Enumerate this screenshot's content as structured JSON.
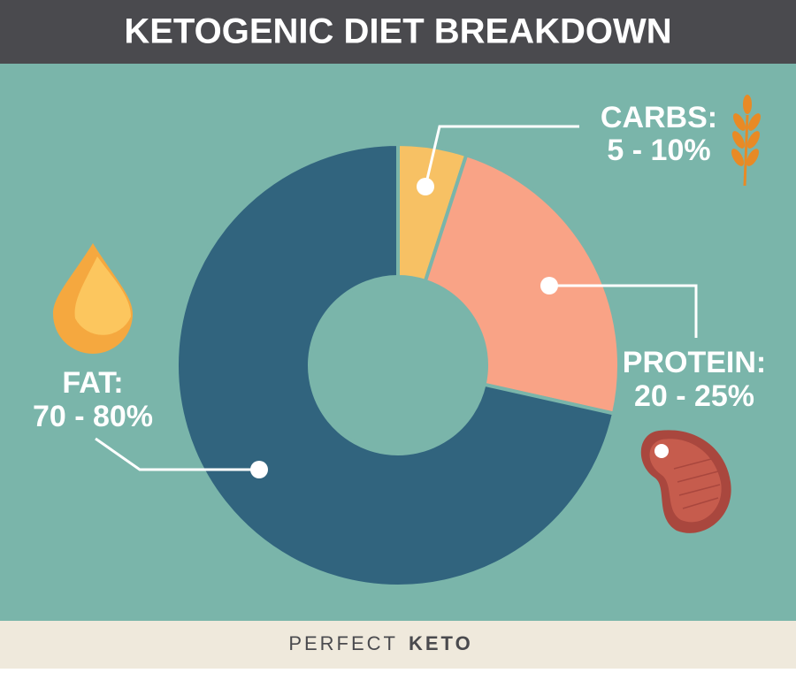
{
  "chart_data": {
    "type": "donut",
    "title": "KETOGENIC DIET BREAKDOWN",
    "categories": [
      "CARBS:",
      "PROTEIN:",
      "FAT:"
    ],
    "range_labels": [
      "5 - 10%",
      "20 - 25%",
      "70 - 80%"
    ],
    "values": [
      5,
      23.5,
      71.5
    ],
    "colors": [
      "#f7c164",
      "#f9a386",
      "#31647e"
    ]
  },
  "footer": {
    "brand": "PERFECT",
    "brand_bold": "KETO"
  }
}
